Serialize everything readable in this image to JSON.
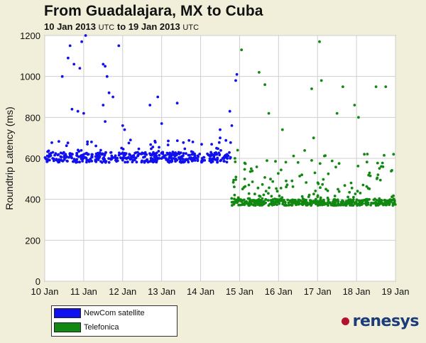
{
  "title": "From Guadalajara, MX to Cuba",
  "subtitle": {
    "from": "10 Jan 2013",
    "utc1": "UTC",
    "to_word": "to",
    "to": "19 Jan 2013",
    "utc2": "UTC"
  },
  "brand": "renesys",
  "colors": {
    "background": "#f1efd9",
    "plot": "#ffffff",
    "grid": "#c9c9c9",
    "newcom": "#1010ee",
    "telefonica": "#118811",
    "brand_dot": "#b3122e",
    "brand_text": "#1b3c78"
  },
  "chart_data": {
    "type": "scatter",
    "ylabel": "Roundtrip Latency (ms)",
    "ylim": [
      0,
      1200
    ],
    "yticks": [
      0,
      200,
      400,
      600,
      800,
      1000,
      1200
    ],
    "xlim": [
      "2013-01-10",
      "2013-01-19"
    ],
    "xticks": [
      "10 Jan",
      "11 Jan",
      "12 Jan",
      "13 Jan",
      "14 Jan",
      "15 Jan",
      "16 Jan",
      "17 Jan",
      "18 Jan",
      "19 Jan"
    ],
    "grid": true,
    "legend_placement": "bottom-left",
    "series": [
      {
        "name": "NewCom satellite",
        "color": "#1010ee",
        "period": [
          "2013-01-10",
          "2013-01-14 19:00"
        ],
        "baseline_range": [
          580,
          630
        ],
        "typical": 600,
        "outliers": [
          [
            0.45,
            1000
          ],
          [
            0.6,
            1090
          ],
          [
            0.65,
            1150
          ],
          [
            0.75,
            1060
          ],
          [
            0.9,
            1040
          ],
          [
            0.7,
            840
          ],
          [
            0.85,
            830
          ],
          [
            1.0,
            820
          ],
          [
            1.05,
            1200
          ],
          [
            0.95,
            1170
          ],
          [
            1.5,
            1060
          ],
          [
            1.55,
            1050
          ],
          [
            1.6,
            1000
          ],
          [
            1.5,
            860
          ],
          [
            1.55,
            780
          ],
          [
            1.65,
            920
          ],
          [
            1.75,
            900
          ],
          [
            1.9,
            1150
          ],
          [
            2.0,
            760
          ],
          [
            2.05,
            740
          ],
          [
            2.7,
            860
          ],
          [
            2.9,
            900
          ],
          [
            3.0,
            770
          ],
          [
            3.4,
            870
          ],
          [
            4.5,
            700
          ],
          [
            4.5,
            740
          ],
          [
            4.75,
            830
          ],
          [
            4.8,
            760
          ],
          [
            4.9,
            980
          ],
          [
            4.93,
            1010
          ],
          [
            0.55,
            610
          ],
          [
            1.2,
            680
          ],
          [
            2.2,
            690
          ],
          [
            3.8,
            680
          ]
        ]
      },
      {
        "name": "Telefonica",
        "color": "#118811",
        "period": [
          "2013-01-14 19:00",
          "2013-01-19"
        ],
        "baseline_range": [
          370,
          400
        ],
        "typical": 385,
        "outliers": [
          [
            4.88,
            600
          ],
          [
            4.95,
            640
          ],
          [
            5.05,
            1130
          ],
          [
            5.5,
            1020
          ],
          [
            5.65,
            960
          ],
          [
            5.75,
            820
          ],
          [
            6.1,
            740
          ],
          [
            6.5,
            580
          ],
          [
            6.85,
            940
          ],
          [
            6.9,
            700
          ],
          [
            7.05,
            1170
          ],
          [
            7.1,
            980
          ],
          [
            7.5,
            820
          ],
          [
            7.65,
            950
          ],
          [
            7.95,
            860
          ],
          [
            8.05,
            800
          ],
          [
            8.2,
            620
          ],
          [
            8.5,
            950
          ],
          [
            8.75,
            950
          ],
          [
            8.95,
            620
          ]
        ]
      }
    ]
  }
}
